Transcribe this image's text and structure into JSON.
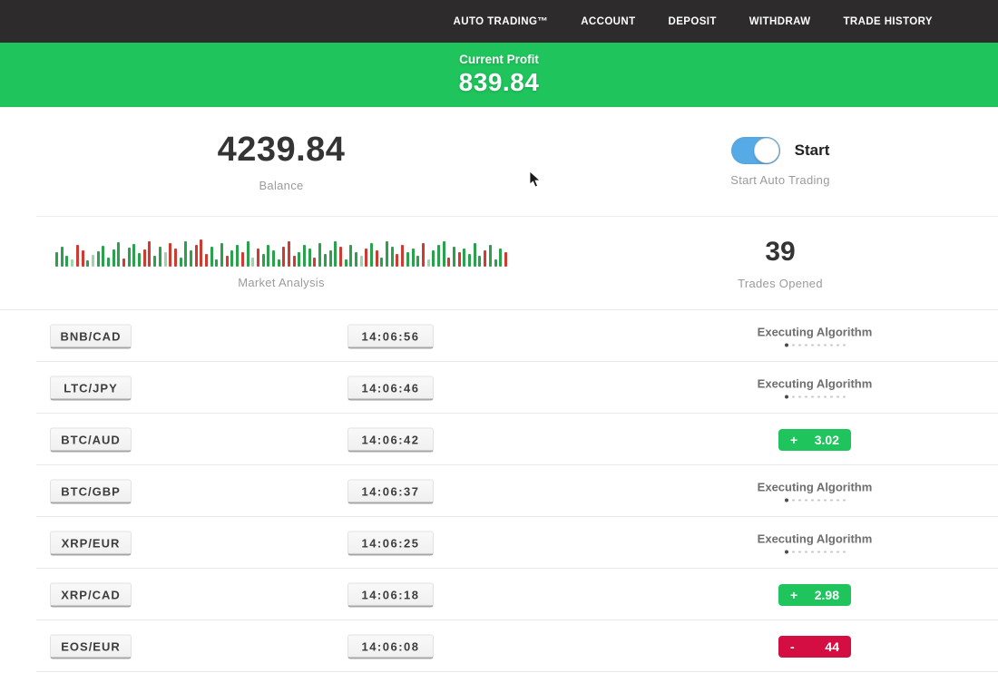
{
  "navbar": {
    "bg_color": "#2d2b2b",
    "items": [
      {
        "label": "AUTO TRADING™"
      },
      {
        "label": "ACCOUNT"
      },
      {
        "label": "DEPOSIT"
      },
      {
        "label": "WITHDRAW"
      },
      {
        "label": "TRADE HISTORY"
      }
    ]
  },
  "profit_banner": {
    "label": "Current Profit",
    "value": "839.84",
    "bg_color": "#1fc55c"
  },
  "stats": {
    "balance_value": "4239.84",
    "balance_label": "Balance",
    "toggle_label": "Start",
    "toggle_on": true,
    "toggle_color": "#56abe6",
    "toggle_caption": "Start Auto Trading",
    "market_label": "Market Analysis",
    "trades_value": "39",
    "trades_label": "Trades Opened"
  },
  "chart_data": {
    "type": "bar",
    "title": "Market Analysis",
    "legend": "decorative green/red tick volume strip, no axes",
    "colors": {
      "g": "#2ca14d",
      "r": "#cf3a31",
      "lg": "#9ed4ab"
    },
    "bars": [
      [
        16,
        "g"
      ],
      [
        22,
        "g"
      ],
      [
        12,
        "g"
      ],
      [
        8,
        "lg"
      ],
      [
        24,
        "r"
      ],
      [
        18,
        "r"
      ],
      [
        7,
        "g"
      ],
      [
        13,
        "lg"
      ],
      [
        17,
        "g"
      ],
      [
        23,
        "g"
      ],
      [
        10,
        "g"
      ],
      [
        19,
        "g"
      ],
      [
        27,
        "g"
      ],
      [
        9,
        "r"
      ],
      [
        21,
        "g"
      ],
      [
        25,
        "g"
      ],
      [
        15,
        "g"
      ],
      [
        19,
        "r"
      ],
      [
        28,
        "r"
      ],
      [
        12,
        "g"
      ],
      [
        22,
        "g"
      ],
      [
        16,
        "lg"
      ],
      [
        26,
        "r"
      ],
      [
        20,
        "r"
      ],
      [
        10,
        "g"
      ],
      [
        28,
        "g"
      ],
      [
        18,
        "g"
      ],
      [
        24,
        "r"
      ],
      [
        30,
        "r"
      ],
      [
        14,
        "r"
      ],
      [
        22,
        "g"
      ],
      [
        8,
        "g"
      ],
      [
        26,
        "g"
      ],
      [
        12,
        "r"
      ],
      [
        18,
        "g"
      ],
      [
        24,
        "g"
      ],
      [
        16,
        "r"
      ],
      [
        28,
        "g"
      ],
      [
        10,
        "lg"
      ],
      [
        20,
        "r"
      ],
      [
        14,
        "g"
      ],
      [
        24,
        "g"
      ],
      [
        18,
        "g"
      ],
      [
        8,
        "g"
      ],
      [
        22,
        "r"
      ],
      [
        28,
        "r"
      ],
      [
        12,
        "r"
      ],
      [
        16,
        "g"
      ],
      [
        24,
        "g"
      ],
      [
        20,
        "g"
      ],
      [
        10,
        "r"
      ],
      [
        26,
        "g"
      ],
      [
        14,
        "g"
      ],
      [
        18,
        "g"
      ],
      [
        28,
        "g"
      ],
      [
        22,
        "r"
      ],
      [
        8,
        "g"
      ],
      [
        24,
        "g"
      ],
      [
        16,
        "g"
      ],
      [
        12,
        "lg"
      ],
      [
        20,
        "r"
      ],
      [
        26,
        "g"
      ],
      [
        18,
        "r"
      ],
      [
        10,
        "g"
      ],
      [
        28,
        "g"
      ],
      [
        22,
        "g"
      ],
      [
        14,
        "r"
      ],
      [
        24,
        "r"
      ],
      [
        16,
        "g"
      ],
      [
        20,
        "g"
      ],
      [
        12,
        "g"
      ],
      [
        26,
        "r"
      ],
      [
        8,
        "lg"
      ],
      [
        18,
        "g"
      ],
      [
        24,
        "g"
      ],
      [
        28,
        "g"
      ],
      [
        10,
        "r"
      ],
      [
        22,
        "g"
      ],
      [
        16,
        "r"
      ],
      [
        20,
        "g"
      ],
      [
        14,
        "g"
      ],
      [
        26,
        "g"
      ],
      [
        12,
        "g"
      ],
      [
        18,
        "r"
      ],
      [
        24,
        "g"
      ],
      [
        8,
        "g"
      ],
      [
        20,
        "g"
      ],
      [
        16,
        "r"
      ]
    ]
  },
  "trades": {
    "executing_label": "Executing Algorithm",
    "profit_color": "#1fc55c",
    "loss_color": "#d40e42",
    "rows": [
      {
        "pair": "BNB/CAD",
        "time": "14:06:56",
        "status": "executing",
        "sign": "",
        "amount": ""
      },
      {
        "pair": "LTC/JPY",
        "time": "14:06:46",
        "status": "executing",
        "sign": "",
        "amount": ""
      },
      {
        "pair": "BTC/AUD",
        "time": "14:06:42",
        "status": "profit",
        "sign": "+",
        "amount": "3.02"
      },
      {
        "pair": "BTC/GBP",
        "time": "14:06:37",
        "status": "executing",
        "sign": "",
        "amount": ""
      },
      {
        "pair": "XRP/EUR",
        "time": "14:06:25",
        "status": "executing",
        "sign": "",
        "amount": ""
      },
      {
        "pair": "XRP/CAD",
        "time": "14:06:18",
        "status": "profit",
        "sign": "+",
        "amount": "2.98"
      },
      {
        "pair": "EOS/EUR",
        "time": "14:06:08",
        "status": "loss",
        "sign": "-",
        "amount": "44"
      }
    ]
  }
}
